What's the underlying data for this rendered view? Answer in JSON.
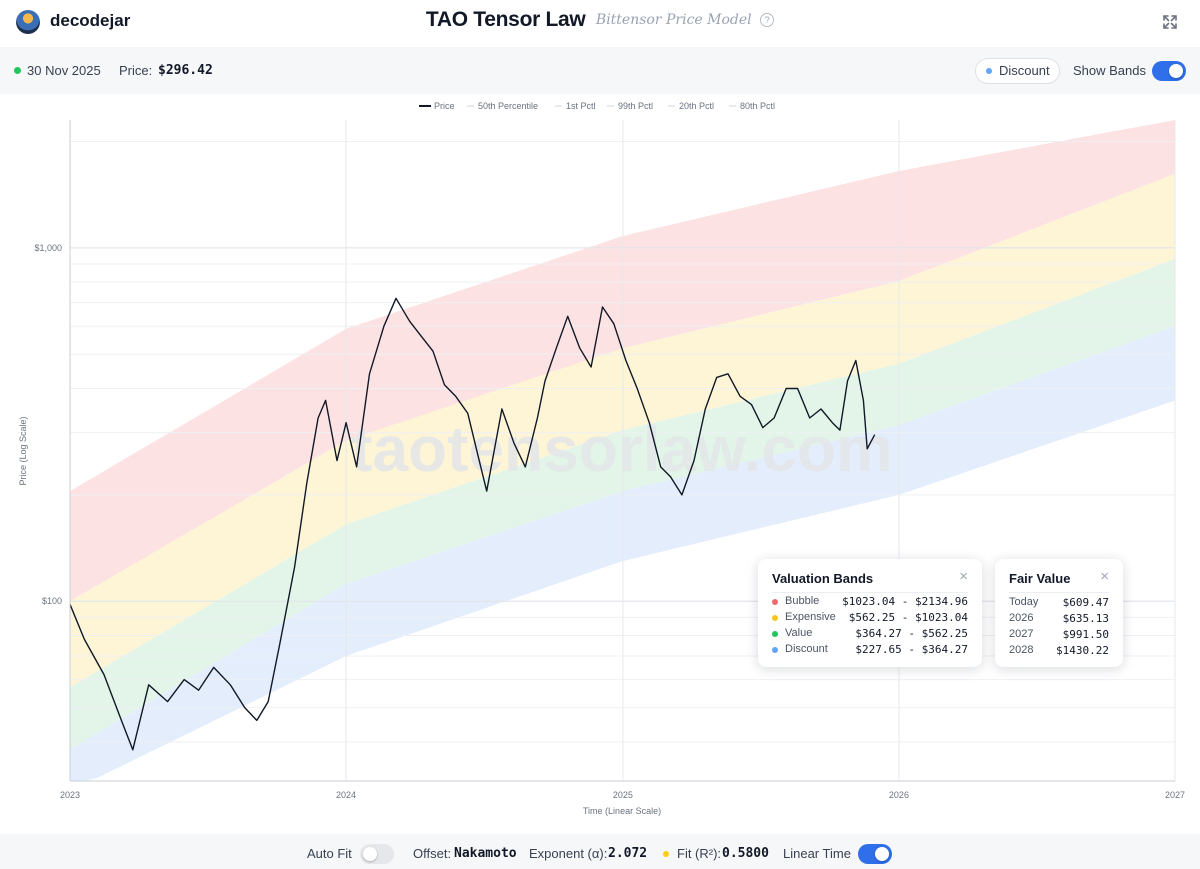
{
  "header": {
    "username": "decodejar",
    "title": "TAO Tensor Law",
    "subtitle": "Bittensor Price Model",
    "help_symbol": "?"
  },
  "infobar": {
    "date": "30 Nov 2025",
    "price_label": "Price:",
    "price_value": "$296.42",
    "discount_label": "Discount",
    "show_bands_label": "Show Bands",
    "show_bands_on": true
  },
  "chart_data": {
    "type": "line",
    "xlabel": "Time (Linear Scale)",
    "ylabel": "Price (Log Scale)",
    "y_scale": "log",
    "ylim": [
      31,
      2300
    ],
    "xlim": [
      "2023-01-01",
      "2027-01-01"
    ],
    "x_ticks": [
      "2023",
      "2024",
      "2025",
      "2026",
      "2027"
    ],
    "y_ticks": [
      {
        "value": 100,
        "label": "$100"
      },
      {
        "value": 1000,
        "label": "$1,000"
      }
    ],
    "grid": true,
    "legend_position": "top",
    "legend": [
      "Price",
      "50th Percentile",
      "1st Pctl",
      "99th Pctl",
      "20th Pctl",
      "80th Pctl"
    ],
    "watermark": "taotensorlaw.com",
    "band_colors": {
      "bubble": "#fde2e3",
      "expensive": "#fdf5d6",
      "value": "#e2f5e8",
      "discount": "#e3edfb"
    },
    "bands": [
      {
        "name": "99th Pctl",
        "x": [
          "2023-01-01",
          "2024-01-01",
          "2025-01-01",
          "2026-01-01",
          "2027-01-01"
        ],
        "values": [
          205,
          590,
          1080,
          1650,
          2300
        ]
      },
      {
        "name": "80th Pctl",
        "x": [
          "2023-01-01",
          "2024-01-01",
          "2025-01-01",
          "2026-01-01",
          "2027-01-01"
        ],
        "values": [
          100,
          285,
          520,
          805,
          1620
        ]
      },
      {
        "name": "50th Percentile",
        "x": [
          "2023-01-01",
          "2024-01-01",
          "2025-01-01",
          "2026-01-01",
          "2027-01-01"
        ],
        "values": [
          57,
          165,
          305,
          470,
          930
        ]
      },
      {
        "name": "20th Pctl",
        "x": [
          "2023-01-01",
          "2024-01-01",
          "2025-01-01",
          "2026-01-01",
          "2027-01-01"
        ],
        "values": [
          38,
          112,
          205,
          315,
          600
        ]
      },
      {
        "name": "1st Pctl",
        "x": [
          "2023-01-01",
          "2024-01-01",
          "2025-01-01",
          "2026-01-01",
          "2027-01-01"
        ],
        "values": [
          29,
          70,
          130,
          200,
          370
        ]
      }
    ],
    "series": [
      {
        "name": "Price",
        "x": [
          "2023-01-01",
          "2023-01-20",
          "2023-02-15",
          "2023-03-10",
          "2023-03-25",
          "2023-04-15",
          "2023-05-10",
          "2023-06-01",
          "2023-06-20",
          "2023-07-10",
          "2023-08-01",
          "2023-08-20",
          "2023-09-05",
          "2023-09-20",
          "2023-10-05",
          "2023-10-25",
          "2023-11-10",
          "2023-11-25",
          "2023-12-05",
          "2023-12-20",
          "2024-01-01",
          "2024-01-15",
          "2024-02-01",
          "2024-02-20",
          "2024-03-07",
          "2024-03-25",
          "2024-04-10",
          "2024-04-25",
          "2024-05-10",
          "2024-05-25",
          "2024-06-10",
          "2024-06-25",
          "2024-07-05",
          "2024-07-25",
          "2024-08-10",
          "2024-08-25",
          "2024-09-10",
          "2024-09-20",
          "2024-10-05",
          "2024-10-20",
          "2024-11-05",
          "2024-11-20",
          "2024-12-05",
          "2024-12-20",
          "2025-01-05",
          "2025-01-20",
          "2025-02-05",
          "2025-02-20",
          "2025-03-05",
          "2025-03-20",
          "2025-04-05",
          "2025-04-20",
          "2025-05-05",
          "2025-05-20",
          "2025-06-05",
          "2025-06-20",
          "2025-07-05",
          "2025-07-20",
          "2025-08-05",
          "2025-08-20",
          "2025-09-05",
          "2025-09-20",
          "2025-10-05",
          "2025-10-15",
          "2025-10-25",
          "2025-11-05",
          "2025-11-15",
          "2025-11-20",
          "2025-11-30"
        ],
        "values": [
          98,
          78,
          62,
          46,
          38,
          58,
          52,
          60,
          56,
          65,
          58,
          50,
          46,
          52,
          75,
          125,
          215,
          330,
          370,
          250,
          320,
          240,
          440,
          600,
          720,
          620,
          560,
          510,
          410,
          380,
          340,
          250,
          205,
          350,
          280,
          240,
          330,
          420,
          520,
          640,
          520,
          460,
          680,
          610,
          480,
          400,
          320,
          240,
          225,
          200,
          250,
          350,
          430,
          440,
          380,
          360,
          310,
          330,
          400,
          400,
          330,
          350,
          320,
          305,
          420,
          480,
          370,
          270,
          296
        ]
      }
    ]
  },
  "valuation_card": {
    "title": "Valuation Bands",
    "close": "×",
    "rows": [
      {
        "name": "Bubble",
        "range": "$1023.04 - $2134.96",
        "color": "#ef6b6b"
      },
      {
        "name": "Expensive",
        "range": "$562.25 - $1023.04",
        "color": "#f5c518"
      },
      {
        "name": "Value",
        "range": "$364.27 - $562.25",
        "color": "#22c55e"
      },
      {
        "name": "Discount",
        "range": "$227.65 - $364.27",
        "color": "#60a5fa"
      }
    ]
  },
  "fair_value_card": {
    "title": "Fair Value",
    "close": "×",
    "rows": [
      {
        "name": "Today",
        "value": "$609.47"
      },
      {
        "name": "2026",
        "value": "$635.13"
      },
      {
        "name": "2027",
        "value": "$991.50"
      },
      {
        "name": "2028",
        "value": "$1430.22"
      }
    ]
  },
  "bottombar": {
    "auto_fit_label": "Auto Fit",
    "auto_fit_on": false,
    "offset_label": "Offset:",
    "offset_value": "Nakamoto",
    "exponent_label": "Exponent (α):",
    "exponent_value": "2.072",
    "fit_label": "Fit (R²):",
    "fit_value": "0.5800",
    "linear_time_label": "Linear Time",
    "linear_time_on": true
  }
}
